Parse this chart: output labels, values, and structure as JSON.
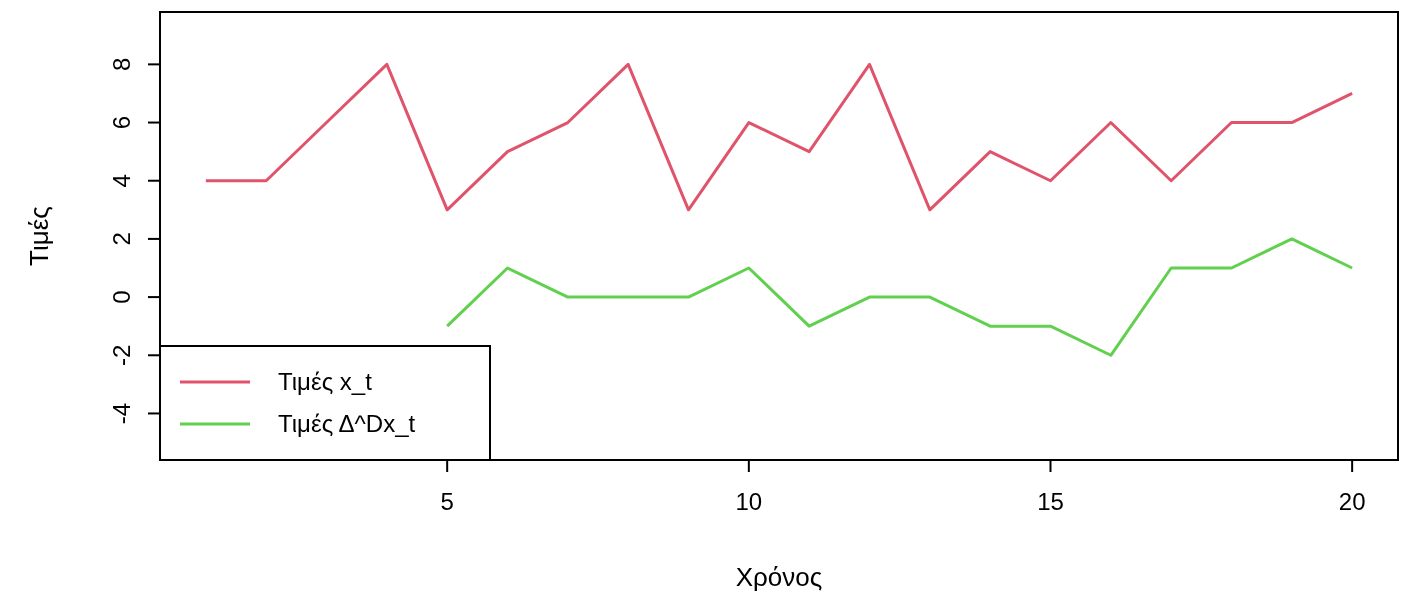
{
  "chart_data": {
    "type": "line",
    "xlabel": "Χρόνος",
    "ylabel": "Τιμές",
    "xlim": [
      0.24,
      20.76
    ],
    "ylim": [
      -5.6,
      9.8
    ],
    "xticks": [
      5,
      10,
      15,
      20
    ],
    "yticks": [
      -4,
      -2,
      0,
      2,
      4,
      6,
      8
    ],
    "grid": false,
    "legend": "bottom left",
    "line_style": "solid",
    "marker": "none",
    "series": [
      {
        "name": "Τιμές x_t",
        "color": "#df536b",
        "x": [
          1,
          2,
          3,
          4,
          5,
          6,
          7,
          8,
          9,
          10,
          11,
          12,
          13,
          14,
          15,
          16,
          17,
          18,
          19,
          20
        ],
        "values": [
          4,
          4,
          6,
          8,
          3,
          5,
          6,
          8,
          3,
          6,
          5,
          8,
          3,
          5,
          4,
          6,
          4,
          6,
          6,
          7
        ]
      },
      {
        "name": "Τιμές Δ^Dx_t",
        "color": "#61d04f",
        "x": [
          5,
          6,
          7,
          8,
          9,
          10,
          11,
          12,
          13,
          14,
          15,
          16,
          17,
          18,
          19,
          20
        ],
        "values": [
          -1,
          1,
          0,
          0,
          0,
          1,
          -1,
          0,
          0,
          -1,
          -1,
          -2,
          1,
          1,
          2,
          1
        ]
      }
    ]
  }
}
